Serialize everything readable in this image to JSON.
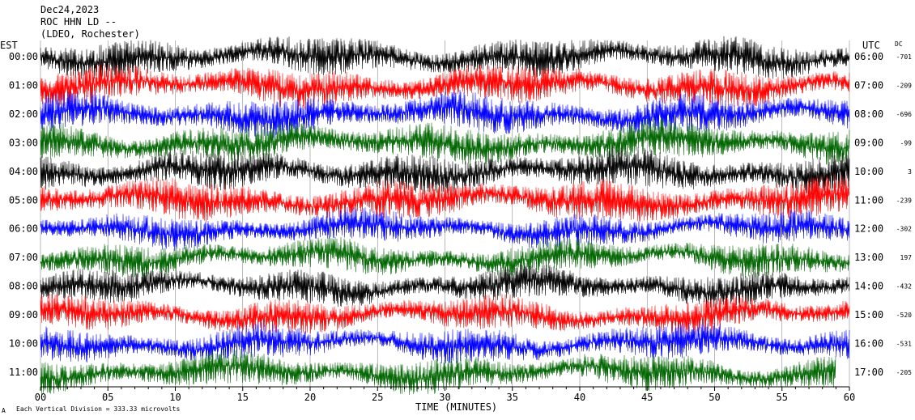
{
  "header": {
    "date": "Dec24,2023",
    "station": "ROC HHN LD --",
    "network": "(LDEO, Rochester)",
    "left_tz": "EST",
    "right_tz": "UTC",
    "dc_label": "DC"
  },
  "footer": {
    "scale_note": "Each Vertical Division =  333.33 microvolts",
    "corner_mark": "A"
  },
  "chart_data": {
    "type": "line",
    "title": "Dec24,2023 ROC HHN LD -- (LDEO, Rochester)",
    "xlabel": "TIME (MINUTES)",
    "ylabel": "",
    "xlim": [
      0,
      60
    ],
    "x_ticks": [
      "00",
      "05",
      "10",
      "15",
      "20",
      "25",
      "30",
      "35",
      "40",
      "45",
      "50",
      "55",
      "60"
    ],
    "vertical_gridlines": true,
    "color_cycle": [
      "#000000",
      "#ff0000",
      "#0000ff",
      "#006600"
    ],
    "rows": [
      {
        "est": "00:00",
        "utc": "06:00",
        "dc": "-701"
      },
      {
        "est": "01:00",
        "utc": "07:00",
        "dc": "-209"
      },
      {
        "est": "02:00",
        "utc": "08:00",
        "dc": "-696"
      },
      {
        "est": "03:00",
        "utc": "09:00",
        "dc": "-99"
      },
      {
        "est": "04:00",
        "utc": "10:00",
        "dc": "3"
      },
      {
        "est": "05:00",
        "utc": "11:00",
        "dc": "-239"
      },
      {
        "est": "06:00",
        "utc": "12:00",
        "dc": "-302"
      },
      {
        "est": "07:00",
        "utc": "13:00",
        "dc": "197"
      },
      {
        "est": "08:00",
        "utc": "14:00",
        "dc": "-432"
      },
      {
        "est": "09:00",
        "utc": "15:00",
        "dc": "-520"
      },
      {
        "est": "10:00",
        "utc": "16:00",
        "dc": "-531"
      },
      {
        "est": "11:00",
        "utc": "17:00",
        "dc": "-205"
      }
    ],
    "last_row_end_minute": 59
  }
}
